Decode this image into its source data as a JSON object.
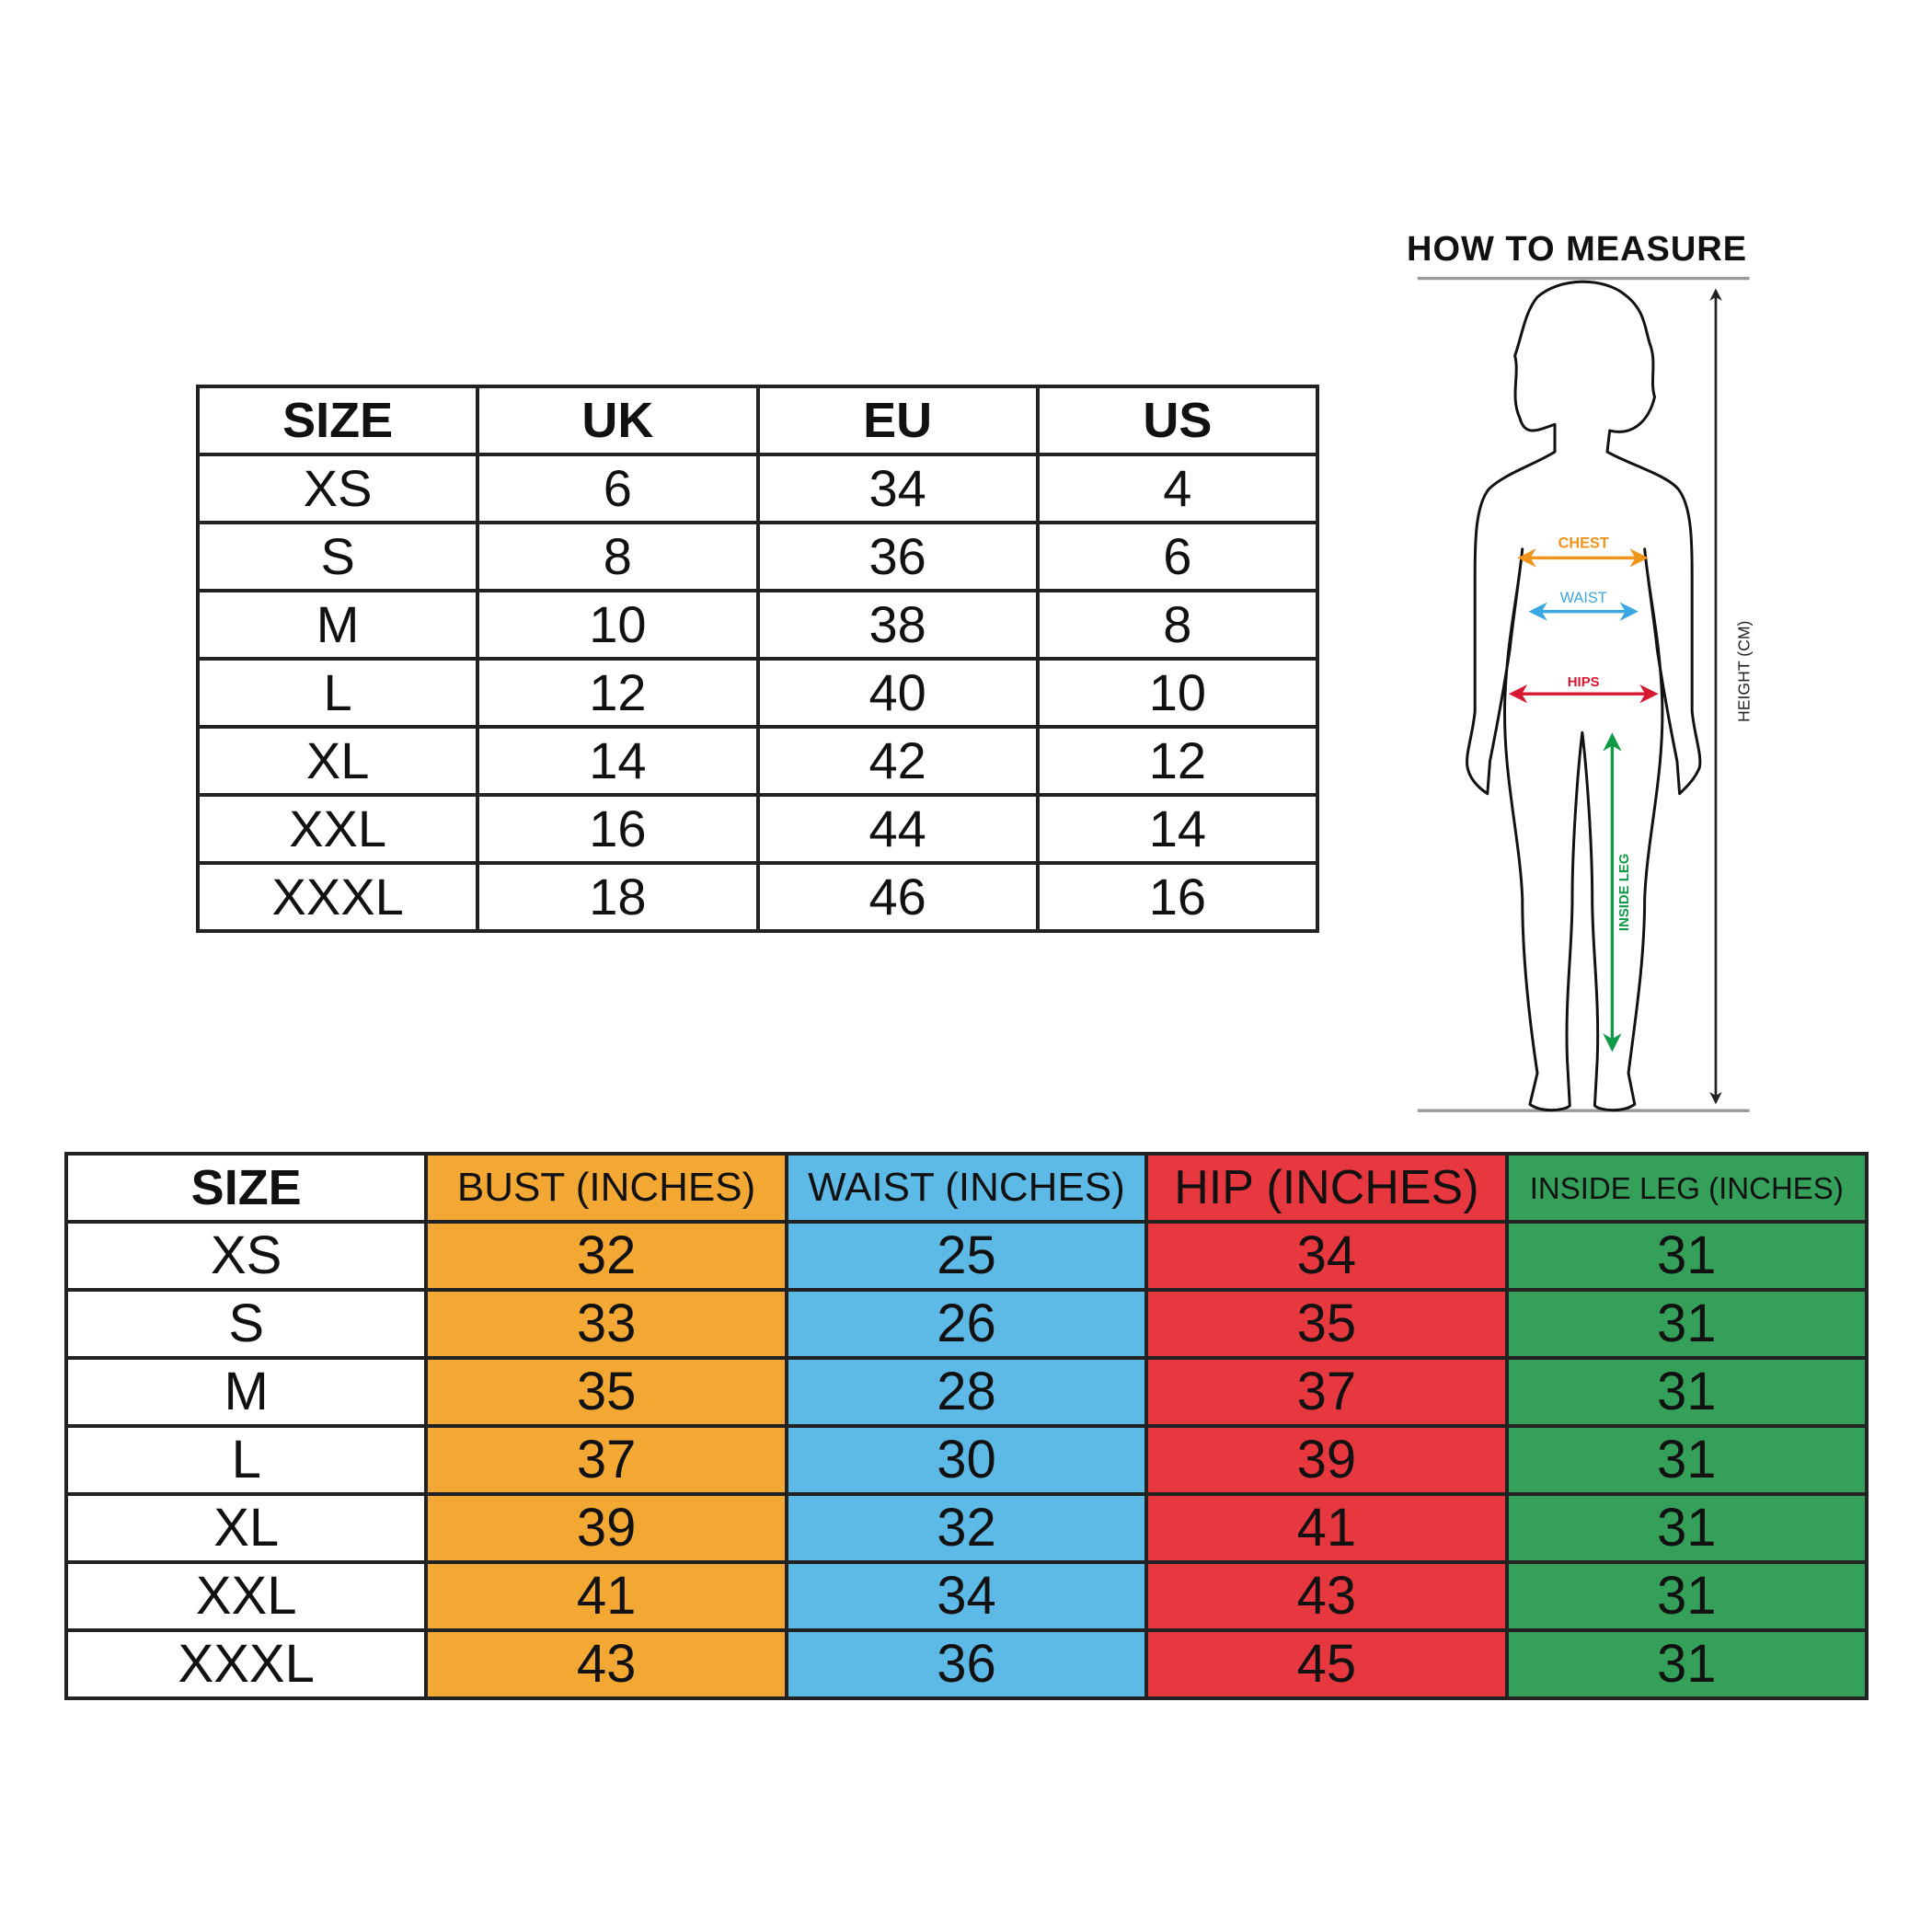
{
  "size_conversion": {
    "headers": [
      "SIZE",
      "UK",
      "EU",
      "US"
    ],
    "rows": [
      [
        "XS",
        "6",
        "34",
        "4"
      ],
      [
        "S",
        "8",
        "36",
        "6"
      ],
      [
        "M",
        "10",
        "38",
        "8"
      ],
      [
        "L",
        "12",
        "40",
        "10"
      ],
      [
        "XL",
        "14",
        "42",
        "12"
      ],
      [
        "XXL",
        "16",
        "44",
        "14"
      ],
      [
        "XXXL",
        "18",
        "46",
        "16"
      ]
    ]
  },
  "measurements": {
    "headers": [
      "SIZE",
      "BUST (INCHES)",
      "WAIST (INCHES)",
      "HIP (INCHES)",
      "INSIDE LEG (INCHES)"
    ],
    "column_colors": [
      "#ffffff",
      "#f3a833",
      "#5db9e6",
      "#e8383f",
      "#34a05a"
    ],
    "rows": [
      [
        "XS",
        "32",
        "25",
        "34",
        "31"
      ],
      [
        "S",
        "33",
        "26",
        "35",
        "31"
      ],
      [
        "M",
        "35",
        "28",
        "37",
        "31"
      ],
      [
        "L",
        "37",
        "30",
        "39",
        "31"
      ],
      [
        "XL",
        "39",
        "32",
        "41",
        "31"
      ],
      [
        "XXL",
        "41",
        "34",
        "43",
        "31"
      ],
      [
        "XXXL",
        "43",
        "36",
        "45",
        "31"
      ]
    ]
  },
  "how_to_measure": {
    "title": "HOW TO MEASURE",
    "height_label": "HEIGHT (CM)",
    "chest_label": "CHEST",
    "waist_label": "WAIST",
    "hips_label": "HIPS",
    "inside_leg_label": "INSIDE LEG",
    "colors": {
      "chest": "#f0941c",
      "waist": "#3aa7e0",
      "hips": "#d7172f",
      "inside_leg": "#0f9a48"
    }
  }
}
